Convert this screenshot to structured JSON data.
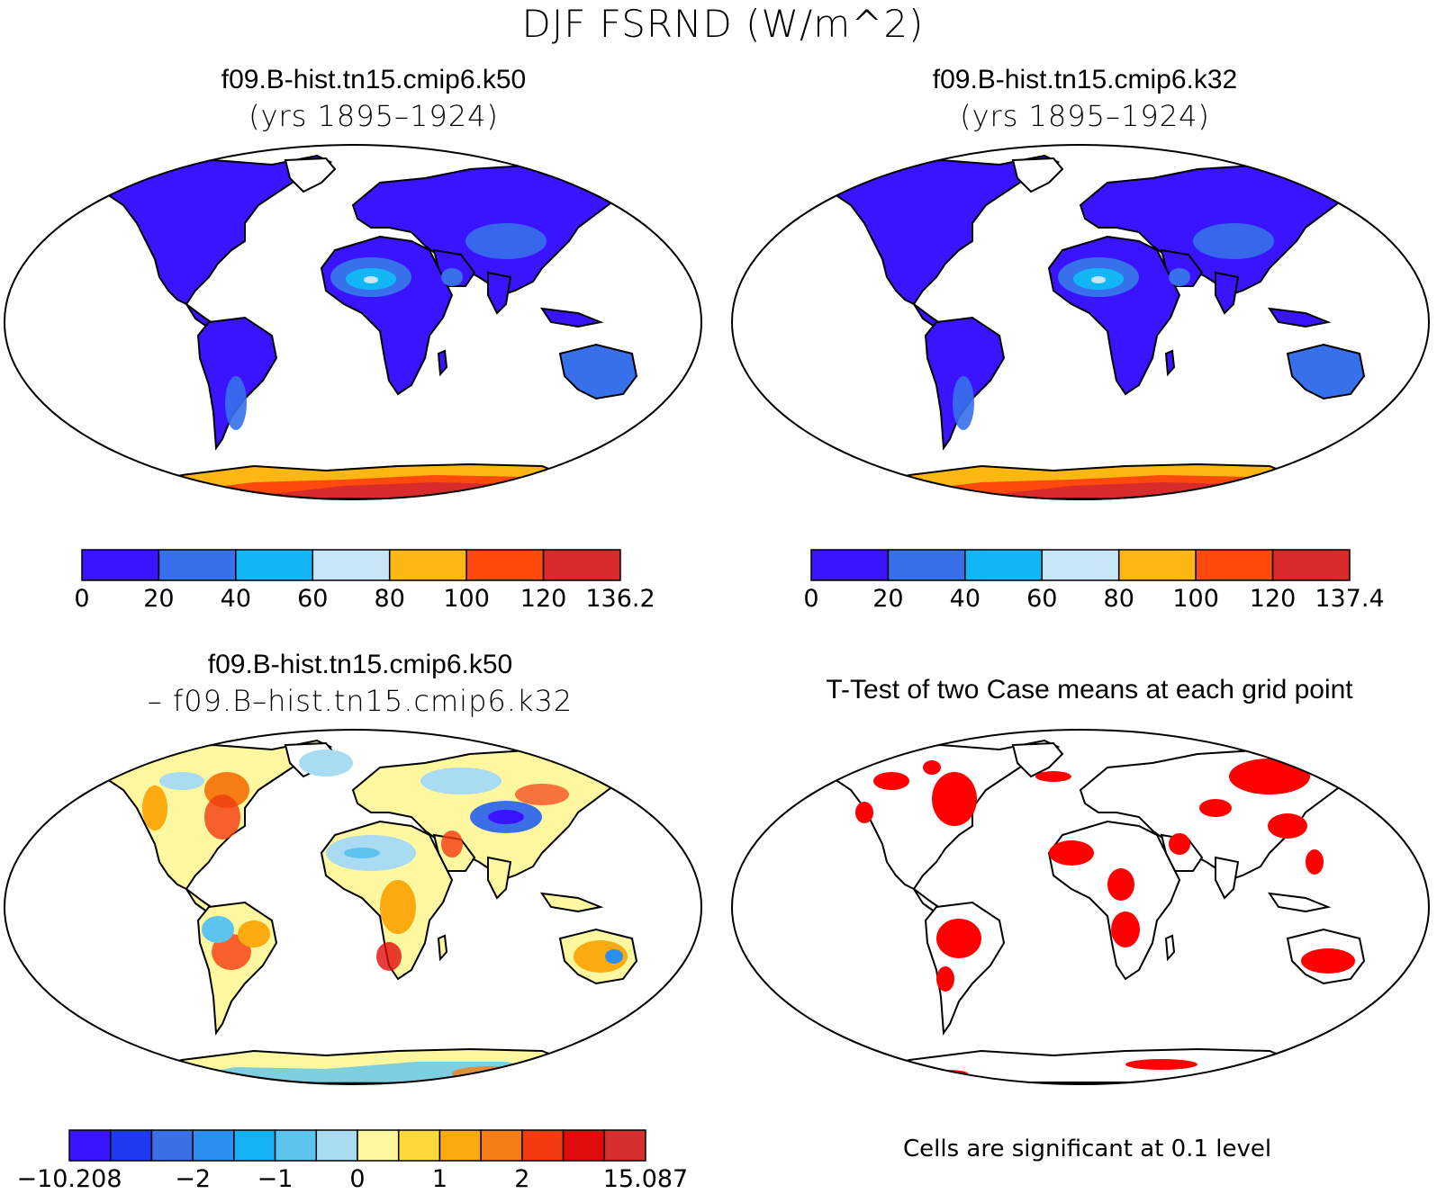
{
  "main_title": "DJF FSRND (W/m^2)",
  "panels": {
    "k50": {
      "title": "f09.B-hist.tn15.cmip6.k50",
      "subtitle": "(yrs 1895–1924)"
    },
    "k32": {
      "title": "f09.B-hist.tn15.cmip6.k32",
      "subtitle": "(yrs 1895–1924)"
    },
    "diff": {
      "title": "f09.B-hist.tn15.cmip6.k50",
      "subtitle": "– f09.B–hist.tn15.cmip6.k32"
    },
    "ttest": {
      "title": "T-Test of two Case means at each grid point",
      "note": "Cells are significant at 0.1 level"
    }
  },
  "colorbars": {
    "k50": {
      "colors": [
        "#3a14ff",
        "#3770eb",
        "#13b6f5",
        "#c6e6f5",
        "#fdb712",
        "#ff4a0d",
        "#d92b2b"
      ],
      "labels": [
        "0",
        "20",
        "40",
        "60",
        "80",
        "100",
        "120",
        "136.2"
      ]
    },
    "k32": {
      "colors": [
        "#3a14ff",
        "#3770eb",
        "#13b6f5",
        "#c6e6f5",
        "#fdb712",
        "#ff4a0d",
        "#d92b2b"
      ],
      "labels": [
        "0",
        "20",
        "40",
        "60",
        "80",
        "100",
        "120",
        "137.4"
      ]
    },
    "diff": {
      "colors": [
        "#3a14ff",
        "#1e3bf0",
        "#3b6fe8",
        "#2a8ff0",
        "#14b2f4",
        "#5dc3ef",
        "#a9dbf2",
        "#fdf7a0",
        "#fdd93a",
        "#fbaa10",
        "#f47e14",
        "#f33a10",
        "#e00c0c",
        "#d52f2f"
      ],
      "labels": [
        "−10.208",
        "−2",
        "−1",
        "0",
        "1",
        "2",
        "15.087"
      ]
    }
  },
  "legend_colors": {
    "land_base": "#3a14ff",
    "antarctic": "#d92b2b",
    "significant": "#ff0000"
  }
}
